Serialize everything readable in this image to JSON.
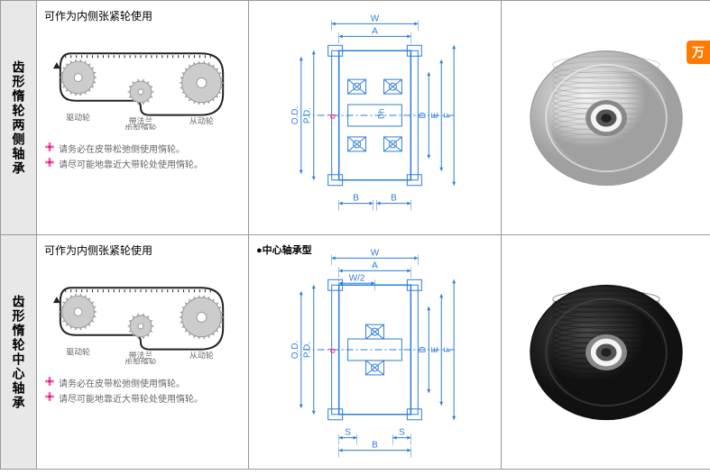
{
  "rows": [
    {
      "label": "齿形惰轮两侧轴承",
      "subtitle": "可作为内侧张紧轮使用",
      "belt_labels": {
        "left": "驱动轮",
        "mid": "带法兰\n齿型惰轮",
        "right": "从动轮"
      },
      "notes": [
        "请务必在皮带松弛侧使用惰轮。",
        "请尽可能地靠近大带轮处使用惰轮。"
      ],
      "tech_labels": {
        "top1": "W",
        "top2": "A",
        "left1": "P.D.",
        "left2": "O.D.",
        "center": "d",
        "center2": "Dh",
        "right1": "D",
        "right2": "E",
        "right3": "F",
        "bottom": "B",
        "bottom2": "B"
      },
      "photo_type": "two-bearing",
      "type_title": ""
    },
    {
      "label": "齿形惰轮中心轴承",
      "subtitle": "可作为内侧张紧轮使用",
      "belt_labels": {
        "left": "驱动轮",
        "mid": "带法兰\n齿型惰轮",
        "right": "从动轮"
      },
      "notes": [
        "请务必在皮带松弛侧使用惰轮。",
        "请尽可能地靠近大带轮处使用惰轮。"
      ],
      "tech_labels": {
        "top1": "W",
        "top2": "A",
        "top3": "W/2",
        "left1": "P.D.",
        "left2": "O.D.",
        "center": "d",
        "right1": "D",
        "right2": "E",
        "right3": "F",
        "bottom": "S",
        "bottom2": "S",
        "bottom3": "B"
      },
      "photo_type": "center-bearing",
      "type_title": "●中心轴承型"
    }
  ],
  "badge_text": "万",
  "colors": {
    "pink": "#e91e8e",
    "blue": "#2e7dd6",
    "belt": "#222",
    "gear": "#ccc",
    "gear_outline": "#999",
    "silver": "#d8d8d8",
    "silver_hl": "#f4f4f4",
    "silver_sh": "#a0a0a0",
    "black": "#2a2a2a",
    "black_hl": "#4a4a4a",
    "black_sh": "#111",
    "bearing": "#888",
    "bearing_inner": "#555"
  }
}
